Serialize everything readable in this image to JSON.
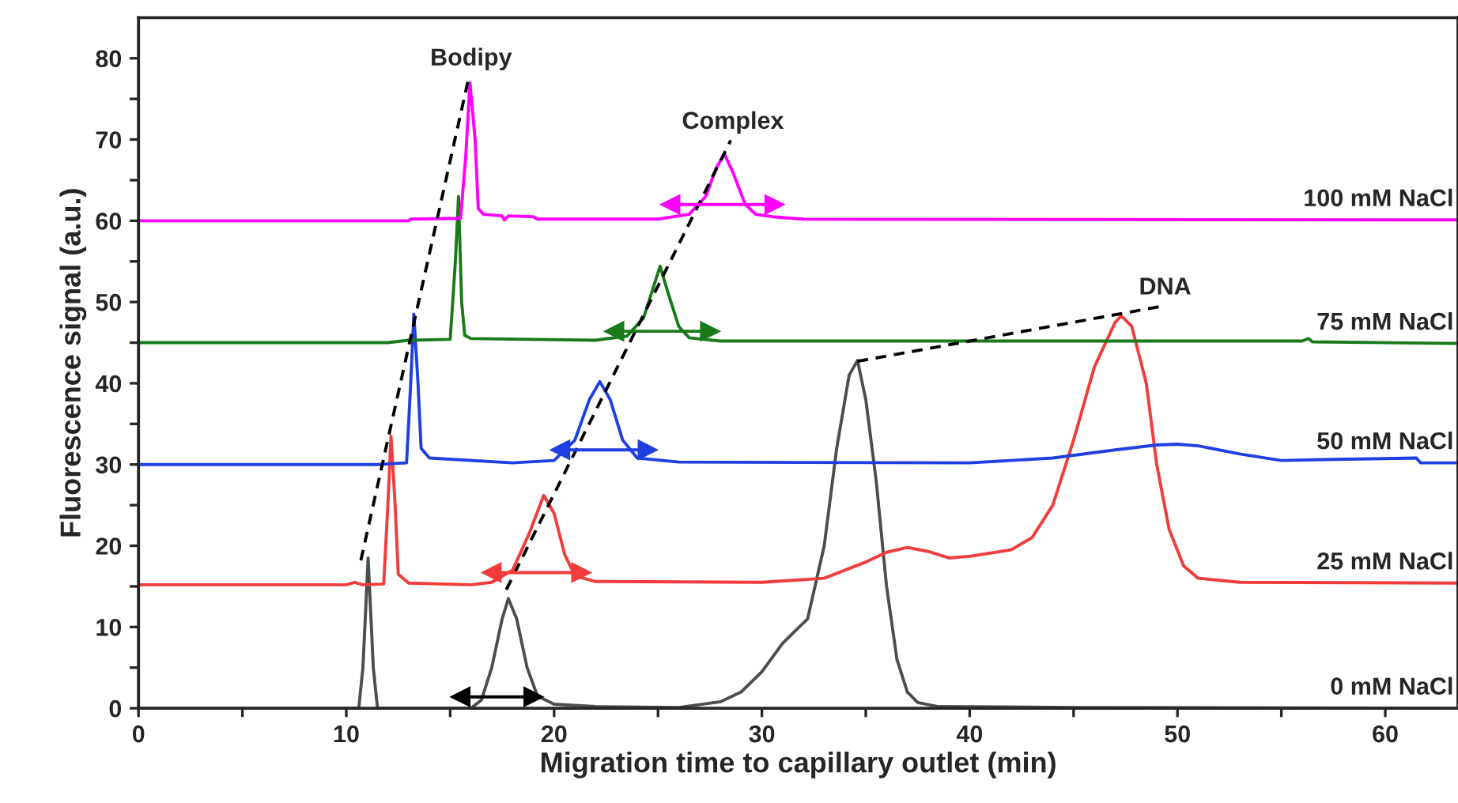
{
  "chart_data": {
    "type": "line",
    "xlabel": "Migration time to capillary outlet (min)",
    "ylabel": "Fluorescence signal (a.u.)",
    "xlim": [
      0,
      63.5
    ],
    "ylim": [
      0,
      85
    ],
    "xticks": [
      0,
      {
        "value": 5,
        "label": null
      },
      10,
      {
        "value": 15,
        "label": null
      },
      20,
      {
        "value": 25,
        "label": null
      },
      30,
      {
        "value": 35,
        "label": null
      },
      40,
      {
        "value": 45,
        "label": null
      },
      50,
      {
        "value": 55,
        "label": null
      },
      60
    ],
    "yticks": [
      0,
      {
        "value": 5,
        "label": null
      },
      10,
      {
        "value": 15,
        "label": null
      },
      20,
      {
        "value": 25,
        "label": null
      },
      30,
      {
        "value": 35,
        "label": null
      },
      40,
      {
        "value": 45,
        "label": null
      },
      50,
      {
        "value": 55,
        "label": null
      },
      60,
      {
        "value": 65,
        "label": null
      },
      70,
      {
        "value": 75,
        "label": null
      },
      80
    ],
    "grid": false,
    "legend": false,
    "series": [
      {
        "name": "0 mM NaCl",
        "color": "#4d4d4d",
        "x": [
          0,
          10.6,
          10.8,
          11.05,
          11.3,
          11.5,
          16,
          16.5,
          17.0,
          17.5,
          17.8,
          18.2,
          18.7,
          19.2,
          20,
          22,
          26,
          28,
          29,
          30,
          31,
          31.6,
          32.2,
          33,
          33.6,
          34.2,
          34.6,
          35,
          35.5,
          36,
          36.5,
          37,
          37.5,
          38.5,
          45,
          63.5
        ],
        "values": [
          0,
          0,
          5,
          18.5,
          5,
          0,
          0,
          1,
          5,
          11,
          13.5,
          11,
          5,
          1.5,
          0.5,
          0.2,
          0.1,
          0.8,
          2,
          4.5,
          8,
          9.5,
          11,
          20,
          32,
          41,
          42.8,
          38,
          28,
          15,
          6,
          2,
          0.7,
          0.2,
          0.1,
          0
        ]
      },
      {
        "name": "25 mM NaCl",
        "color": "#f03c3c",
        "x": [
          0,
          10,
          10.4,
          10.8,
          11.8,
          12.0,
          12.15,
          12.35,
          12.5,
          13,
          16,
          17,
          18,
          18.8,
          19.5,
          20,
          20.5,
          21,
          22,
          30,
          33,
          34,
          35,
          36,
          37,
          38,
          39,
          40,
          42,
          43,
          44,
          45,
          46,
          47,
          47.3,
          47.8,
          48.5,
          49,
          49.6,
          50.3,
          51,
          53,
          63.5
        ],
        "values": [
          15.2,
          15.2,
          15.5,
          15.2,
          15.3,
          25,
          33.5,
          25,
          16.5,
          15.4,
          15.2,
          15.5,
          17,
          21.5,
          26.2,
          24,
          19,
          16.3,
          15.6,
          15.5,
          16,
          17,
          18,
          19.2,
          19.8,
          19.3,
          18.5,
          18.7,
          19.5,
          21,
          25,
          33,
          42,
          47.5,
          48.3,
          47,
          40,
          30,
          22,
          17.5,
          16,
          15.5,
          15.4
        ]
      },
      {
        "name": "50 mM NaCl",
        "color": "#1f3fe0",
        "x": [
          0,
          11.5,
          12.9,
          13.1,
          13.25,
          13.45,
          13.6,
          14,
          18,
          20,
          21,
          21.7,
          22.2,
          22.7,
          23.3,
          24,
          26,
          40,
          44,
          47,
          49,
          50,
          51,
          53,
          55,
          57,
          61.5,
          61.7,
          63.5
        ],
        "values": [
          30,
          30,
          30.2,
          40,
          48.5,
          40,
          32,
          30.8,
          30.2,
          30.5,
          33,
          38,
          40.2,
          38,
          33,
          30.8,
          30.3,
          30.2,
          30.8,
          31.8,
          32.4,
          32.5,
          32.3,
          31.3,
          30.5,
          30.6,
          30.8,
          30.2,
          30.2
        ]
      },
      {
        "name": "75 mM NaCl",
        "color": "#1a7a1a",
        "x": [
          0,
          12,
          13.0,
          15.0,
          15.25,
          15.4,
          15.55,
          15.7,
          16,
          22,
          23.5,
          24.3,
          24.8,
          25.1,
          25.5,
          26,
          26.5,
          28,
          45,
          56,
          56.3,
          56.5,
          63.5
        ],
        "values": [
          45,
          45,
          45.3,
          45.4,
          55,
          63,
          50,
          45.9,
          45.5,
          45.3,
          45.8,
          48,
          52,
          54.4,
          51,
          47,
          45.6,
          45.2,
          45.2,
          45.2,
          45.5,
          45.1,
          44.9
        ]
      },
      {
        "name": "100 mM NaCl",
        "color": "#ff00ff",
        "x": [
          0,
          13,
          13.1,
          15.5,
          15.75,
          15.95,
          16.2,
          16.35,
          16.6,
          17.5,
          17.6,
          17.8,
          19,
          19.2,
          25,
          26.5,
          27.3,
          27.8,
          28.2,
          28.6,
          29.2,
          29.7,
          30.5,
          32,
          63.5
        ],
        "values": [
          60,
          60,
          60.2,
          60.3,
          68,
          77,
          70,
          61.5,
          60.8,
          60.6,
          60.1,
          60.6,
          60.5,
          60.2,
          60.2,
          60.8,
          63,
          66.5,
          68.2,
          66,
          62,
          60.8,
          60.5,
          60.2,
          60.1
        ]
      },
      {
        "type": "line",
        "color": "#000000",
        "line_style": "dashed",
        "x": [
          10.7,
          15.9
        ],
        "values": [
          18.2,
          77.7
        ]
      },
      {
        "type": "line",
        "color": "#000000",
        "line_style": "dashed",
        "x": [
          17.7,
          28.5
        ],
        "values": [
          14.6,
          69.9
        ]
      },
      {
        "type": "line",
        "color": "#000000",
        "line_style": "dashed",
        "x": [
          34.6,
          49.3
        ],
        "values": [
          42.7,
          49.5
        ]
      },
      {
        "type": "line",
        "marker": "triangle",
        "color": "#000000",
        "x": [
          15.5,
          19.0
        ],
        "values": [
          1.4,
          1.4
        ]
      },
      {
        "type": "line",
        "marker": "triangle",
        "color": "#f03c3c",
        "x": [
          17.0,
          21.3
        ],
        "values": [
          16.7,
          16.7
        ]
      },
      {
        "type": "line",
        "marker": "triangle",
        "color": "#1f3fe0",
        "x": [
          20.3,
          24.5
        ],
        "values": [
          31.8,
          31.8
        ]
      },
      {
        "type": "line",
        "marker": "triangle",
        "color": "#1a7a1a",
        "x": [
          22.9,
          27.5
        ],
        "values": [
          46.4,
          46.4
        ]
      },
      {
        "type": "line",
        "marker": "triangle",
        "color": "#ff00ff",
        "x": [
          25.6,
          30.6
        ],
        "values": [
          62.0,
          62.0
        ]
      }
    ],
    "annotations": [
      {
        "text": "Bodipy",
        "x": 15.9,
        "y": 77.7
      },
      {
        "text": "Complex",
        "x": 28.5,
        "y": 69.9
      },
      {
        "text": "DNA",
        "x": 49.3,
        "y": 49.5
      }
    ]
  }
}
